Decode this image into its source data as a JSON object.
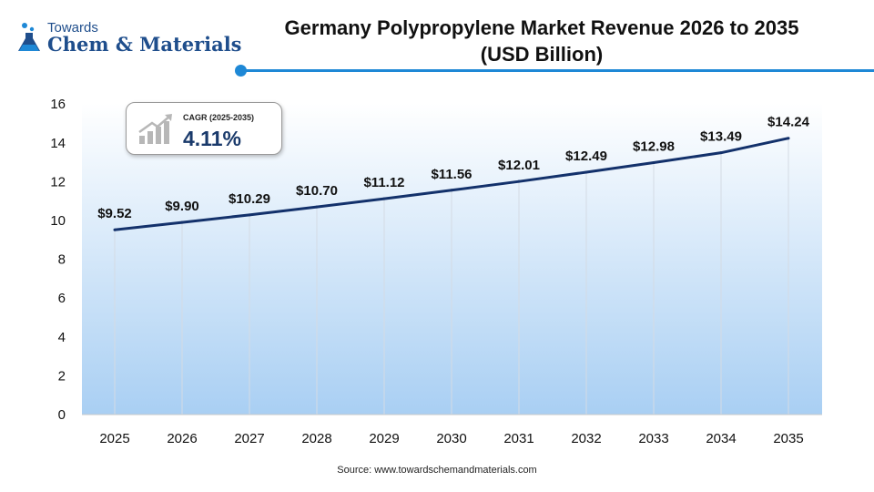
{
  "logo": {
    "top_text": "Towards",
    "main_text": "Chem & Materials"
  },
  "title_line1": "Germany Polypropylene Market Revenue 2026 to 2035",
  "title_line2": "(USD Billion)",
  "cagr": {
    "label": "CAGR (2025-2035)",
    "value": "4.11%"
  },
  "source": "Source: www.towardschemandmaterials.com",
  "colors": {
    "line": "#13316b",
    "accent": "#1e88d6",
    "area_top": "#ffffff",
    "area_bottom": "#a9cff3"
  },
  "chart_data": {
    "type": "line",
    "categories": [
      "2025",
      "2026",
      "2027",
      "2028",
      "2029",
      "2030",
      "2031",
      "2032",
      "2033",
      "2034",
      "2035"
    ],
    "values": [
      9.52,
      9.9,
      10.29,
      10.7,
      11.12,
      11.56,
      12.01,
      12.49,
      12.98,
      13.49,
      14.24
    ],
    "data_labels": [
      "$9.52",
      "$9.90",
      "$10.29",
      "$10.70",
      "$11.12",
      "$11.56",
      "$12.01",
      "$12.49",
      "$12.98",
      "$13.49",
      "$14.24"
    ],
    "y_ticks": [
      0,
      2,
      4,
      6,
      8,
      10,
      12,
      14,
      16
    ],
    "ylim": [
      0,
      16
    ],
    "xlabel": "",
    "ylabel": "",
    "grid": "vertical"
  }
}
